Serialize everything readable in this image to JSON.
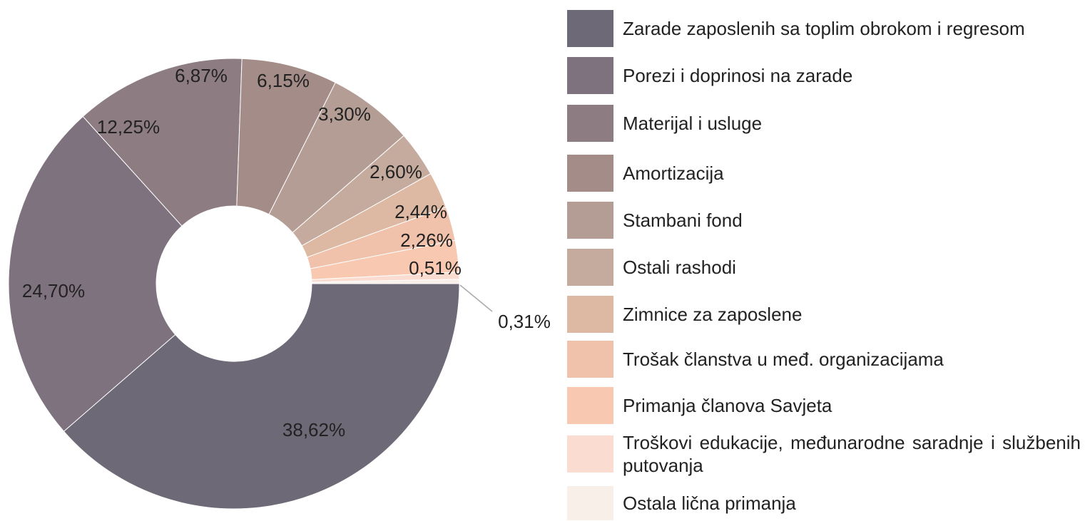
{
  "chart_data": {
    "type": "donut",
    "categories": [
      "Zarade zaposlenih sa toplim obrokom i regresom",
      "Porezi i doprinosi na zarade",
      "Materijal i usluge",
      "Amortizacija",
      "Stambani fond",
      "Ostali rashodi",
      "Zimnice za zaposlene",
      "Trošak članstva u međ. organizacijama",
      "Primanja članova Savjeta",
      "Troškovi edukacije, međunarodne saradnje i službenih putovanja",
      "Ostala lična primanja"
    ],
    "values": [
      38.62,
      24.7,
      12.25,
      6.87,
      6.15,
      3.3,
      2.6,
      2.44,
      2.26,
      0.51,
      0.31
    ],
    "value_labels": [
      "38,62%",
      "24,70%",
      "12,25%",
      "6,87%",
      "6,15%",
      "3,30%",
      "2,60%",
      "2,44%",
      "2,26%",
      "0,51%",
      "0,31%"
    ],
    "colors": [
      "#6d6977",
      "#7e727e",
      "#8d7d82",
      "#a48c88",
      "#b49d95",
      "#c5aa9e",
      "#ddb9a3",
      "#f0c1ab",
      "#f8c8b0",
      "#fadcd0",
      "#f8efe9"
    ]
  }
}
